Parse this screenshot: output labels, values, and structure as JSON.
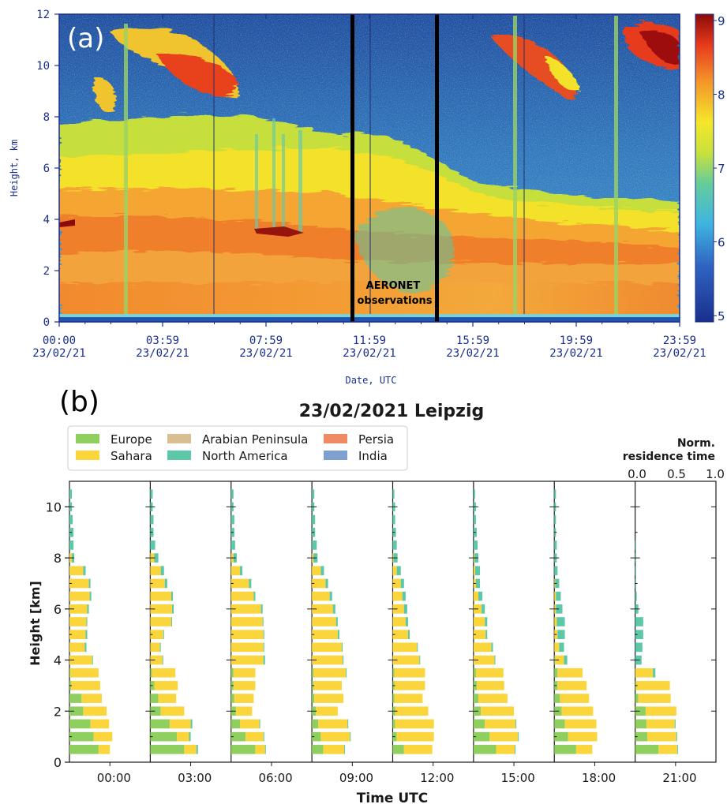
{
  "panel_a": {
    "label": "(a)",
    "ylabel": "Height, km",
    "xlabel": "Date, UTC",
    "yticks": [
      "0",
      "2",
      "4",
      "6",
      "8",
      "10",
      "12"
    ],
    "xticks": [
      {
        "time": "00:00",
        "date": "23/02/21"
      },
      {
        "time": "03:59",
        "date": "23/02/21"
      },
      {
        "time": "07:59",
        "date": "23/02/21"
      },
      {
        "time": "11:59",
        "date": "23/02/21"
      },
      {
        "time": "15:59",
        "date": "23/02/21"
      },
      {
        "time": "19:59",
        "date": "23/02/21"
      },
      {
        "time": "23:59",
        "date": "23/02/21"
      }
    ],
    "colorbar_ticks": [
      "5",
      "6",
      "7",
      "8",
      "9"
    ],
    "annotation_line1": "AERONET",
    "annotation_line2": "observations",
    "colors": {
      "low": "#1a2f8c",
      "mid": "#3fb5e0",
      "mid2": "#f5e62a",
      "high": "#e83a1c",
      "max": "#8b0a0a"
    }
  },
  "panel_b": {
    "label": "(b)",
    "title": "23/02/2021 Leipzig",
    "legend": [
      {
        "name": "Europe",
        "color": "#8fcf5f"
      },
      {
        "name": "Sahara",
        "color": "#fad53c"
      },
      {
        "name": "Arabian Peninsula",
        "color": "#d9be92"
      },
      {
        "name": "North America",
        "color": "#5cc8a8"
      },
      {
        "name": "Persia",
        "color": "#f08a64"
      },
      {
        "name": "India",
        "color": "#7f9fce"
      }
    ],
    "norm_title_line1": "Norm.",
    "norm_title_line2": "residence time",
    "norm_ticks": [
      "0.0",
      "0.5",
      "1.0"
    ],
    "ylabel": "Height [km]",
    "xlabel": "Time UTC",
    "yticks": [
      "0",
      "2",
      "4",
      "6",
      "8",
      "10"
    ]
  },
  "chart_data": [
    {
      "type": "heatmap",
      "title": "",
      "xlabel": "Date, UTC",
      "ylabel": "Height, km",
      "ylim": [
        0,
        12
      ],
      "x_range": [
        "00:00 23/02/21",
        "23:59 23/02/21"
      ],
      "colorbar_range": [
        5,
        9
      ],
      "annotations": [
        "AERONET observations"
      ],
      "aeronet_window": [
        "10:45",
        "14:00"
      ]
    },
    {
      "type": "bar",
      "title": "23/02/2021 Leipzig",
      "xlabel": "Time UTC",
      "ylabel": "Height [km]",
      "ylim": [
        0,
        11
      ],
      "xlim_per_panel": [
        0,
        1
      ],
      "heights_km": [
        0.5,
        1.0,
        1.5,
        2.0,
        2.5,
        3.0,
        3.5,
        4.0,
        4.5,
        5.0,
        5.5,
        6.0,
        6.5,
        7.0,
        7.5,
        8.0,
        8.5,
        9.0,
        9.5,
        10.0,
        10.5
      ],
      "panels": [
        {
          "time": "00:00",
          "Europe": [
            0.36,
            0.3,
            0.26,
            0.17,
            0.15,
            0.02,
            0.01,
            0,
            0,
            0,
            0,
            0,
            0,
            0,
            0,
            0,
            0,
            0,
            0,
            0,
            0
          ],
          "Sahara": [
            0.14,
            0.23,
            0.23,
            0.29,
            0.25,
            0.36,
            0.35,
            0.28,
            0.19,
            0.2,
            0.21,
            0.22,
            0.25,
            0.24,
            0.17,
            0.03,
            0,
            0,
            0,
            0,
            0
          ],
          "North America": [
            0,
            0,
            0,
            0,
            0,
            0,
            0,
            0.01,
            0.02,
            0.02,
            0.01,
            0.02,
            0.02,
            0.02,
            0.03,
            0.03,
            0.05,
            0.05,
            0.04,
            0.03,
            0.03
          ]
        },
        {
          "time": "03:00",
          "Europe": [
            0.42,
            0.33,
            0.24,
            0.13,
            0.1,
            0.05,
            0.02,
            0,
            0,
            0,
            0,
            0,
            0,
            0,
            0,
            0,
            0,
            0,
            0,
            0,
            0
          ],
          "Sahara": [
            0.15,
            0.15,
            0.26,
            0.29,
            0.22,
            0.29,
            0.29,
            0.15,
            0.12,
            0.16,
            0.26,
            0.27,
            0.26,
            0.18,
            0.13,
            0.05,
            0,
            0,
            0,
            0,
            0
          ],
          "North America": [
            0.02,
            0.02,
            0.02,
            0,
            0,
            0,
            0,
            0.01,
            0.01,
            0.01,
            0.01,
            0.02,
            0.02,
            0.03,
            0.04,
            0.05,
            0.06,
            0.04,
            0.04,
            0.03,
            0.03
          ]
        },
        {
          "time": "06:00",
          "Europe": [
            0.3,
            0.18,
            0.11,
            0.06,
            0.04,
            0.03,
            0.03,
            0,
            0,
            0,
            0,
            0,
            0,
            0,
            0,
            0,
            0,
            0,
            0,
            0,
            0
          ],
          "Sahara": [
            0.12,
            0.22,
            0.24,
            0.2,
            0.24,
            0.27,
            0.27,
            0.4,
            0.4,
            0.4,
            0.39,
            0.37,
            0.28,
            0.22,
            0.11,
            0.03,
            0,
            0,
            0,
            0,
            0
          ],
          "North America": [
            0.01,
            0.01,
            0.01,
            0,
            0,
            0,
            0,
            0.02,
            0.01,
            0.01,
            0.01,
            0.02,
            0.02,
            0.03,
            0.03,
            0.04,
            0.05,
            0.04,
            0.04,
            0.03,
            0.03
          ]
        },
        {
          "time": "09:00",
          "Europe": [
            0.14,
            0.11,
            0.08,
            0.05,
            0.03,
            0.02,
            0.02,
            0,
            0,
            0,
            0,
            0,
            0,
            0,
            0,
            0,
            0,
            0,
            0,
            0,
            0
          ],
          "Sahara": [
            0.26,
            0.36,
            0.36,
            0.27,
            0.36,
            0.35,
            0.4,
            0.38,
            0.37,
            0.32,
            0.3,
            0.26,
            0.22,
            0.17,
            0.11,
            0.02,
            0,
            0,
            0,
            0,
            0
          ],
          "North America": [
            0.01,
            0.01,
            0.01,
            0,
            0,
            0,
            0.01,
            0.01,
            0.01,
            0.02,
            0.02,
            0.03,
            0.03,
            0.03,
            0.04,
            0.05,
            0.06,
            0.04,
            0.04,
            0.03,
            0.03
          ]
        },
        {
          "time": "12:00",
          "Europe": [
            0.14,
            0.05,
            0.03,
            0.03,
            0.02,
            0.02,
            0.02,
            0,
            0,
            0,
            0,
            0,
            0,
            0,
            0,
            0,
            0,
            0,
            0,
            0,
            0
          ],
          "Sahara": [
            0.35,
            0.46,
            0.48,
            0.41,
            0.35,
            0.38,
            0.38,
            0.33,
            0.3,
            0.19,
            0.16,
            0.14,
            0.12,
            0.1,
            0.05,
            0.01,
            0,
            0,
            0,
            0,
            0
          ],
          "North America": [
            0,
            0,
            0,
            0,
            0,
            0,
            0,
            0.01,
            0.01,
            0.02,
            0.03,
            0.04,
            0.04,
            0.04,
            0.05,
            0.05,
            0.05,
            0.04,
            0.03,
            0.03,
            0.02
          ]
        },
        {
          "time": "15:00",
          "Europe": [
            0.28,
            0.2,
            0.14,
            0.09,
            0.06,
            0.04,
            0.03,
            0,
            0,
            0,
            0,
            0,
            0,
            0,
            0,
            0,
            0,
            0,
            0,
            0,
            0
          ],
          "Sahara": [
            0.23,
            0.35,
            0.38,
            0.41,
            0.36,
            0.34,
            0.34,
            0.26,
            0.22,
            0.15,
            0.14,
            0.1,
            0.06,
            0.03,
            0.02,
            0.01,
            0,
            0,
            0,
            0,
            0
          ],
          "North America": [
            0.01,
            0.01,
            0.01,
            0,
            0,
            0,
            0,
            0.01,
            0.02,
            0.02,
            0.03,
            0.04,
            0.05,
            0.05,
            0.06,
            0.05,
            0.05,
            0.04,
            0.03,
            0.03,
            0.02
          ]
        },
        {
          "time": "18:00",
          "Europe": [
            0.27,
            0.17,
            0.13,
            0.09,
            0.07,
            0.04,
            0.04,
            0.01,
            0,
            0,
            0,
            0,
            0,
            0,
            0,
            0,
            0,
            0,
            0,
            0,
            0
          ],
          "Sahara": [
            0.2,
            0.36,
            0.39,
            0.39,
            0.36,
            0.36,
            0.31,
            0.11,
            0.06,
            0.04,
            0.03,
            0.02,
            0.02,
            0.01,
            0,
            0,
            0,
            0,
            0,
            0,
            0
          ],
          "North America": [
            0,
            0,
            0,
            0,
            0,
            0,
            0,
            0.04,
            0.06,
            0.09,
            0.1,
            0.08,
            0.06,
            0.05,
            0.04,
            0.03,
            0.03,
            0.02,
            0.02,
            0.02,
            0.02
          ]
        },
        {
          "time": "21:00",
          "Europe": [
            0.29,
            0.15,
            0.14,
            0.13,
            0.04,
            0.01,
            0,
            0,
            0,
            0,
            0,
            0,
            0,
            0,
            0,
            0,
            0,
            0,
            0,
            0,
            0
          ],
          "Sahara": [
            0.23,
            0.36,
            0.35,
            0.38,
            0.4,
            0.42,
            0.22,
            0,
            0,
            0,
            0,
            0,
            0,
            0,
            0,
            0,
            0,
            0,
            0,
            0,
            0
          ],
          "North America": [
            0.01,
            0.01,
            0.01,
            0,
            0,
            0,
            0.03,
            0.08,
            0.09,
            0.1,
            0.1,
            0.04,
            0.02,
            0.01,
            0.01,
            0.01,
            0.01,
            0,
            0,
            0,
            0
          ]
        }
      ]
    }
  ]
}
